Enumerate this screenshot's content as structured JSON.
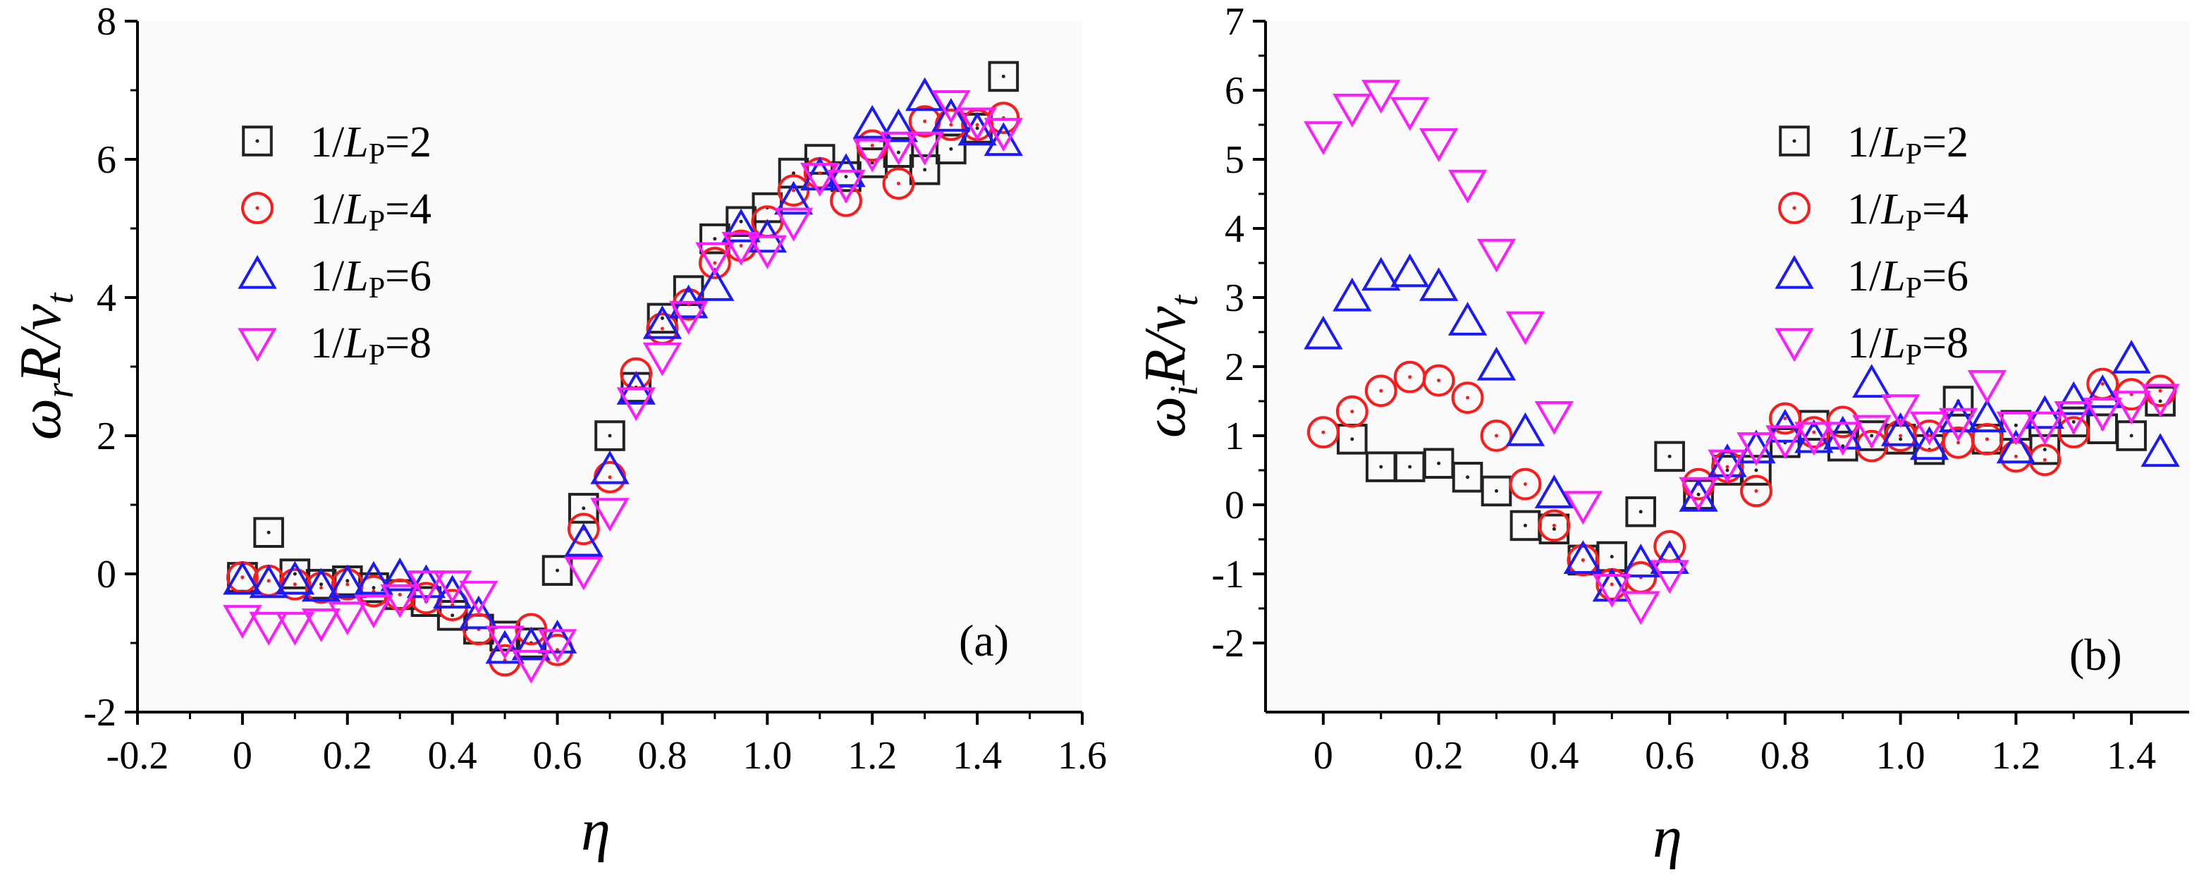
{
  "chart_data": [
    {
      "type": "scatter",
      "panel_label": "(a)",
      "ylabel": {
        "omega": "ω",
        "sub1": "r",
        "rest": "R/v",
        "sub2": "t"
      },
      "xlabel": "η",
      "xlim": [
        -0.2,
        1.6
      ],
      "ylim": [
        -2,
        8
      ],
      "xticks": [
        -0.2,
        0,
        0.2,
        0.4,
        0.6,
        0.8,
        1.0,
        1.2,
        1.4,
        1.6
      ],
      "xtick_labels": [
        "-0.2",
        "0",
        "0.2",
        "0.4",
        "0.6",
        "0.8",
        "1.0",
        "1.2",
        "1.4",
        "1.6"
      ],
      "yticks": [
        -2,
        0,
        2,
        4,
        6,
        8
      ],
      "ytick_labels": [
        "-2",
        "0",
        "2",
        "4",
        "6",
        "8"
      ],
      "legend_position": "top-left",
      "series": [
        {
          "name": "1/LP=2",
          "label_prefix": "1/",
          "label_L": "L",
          "label_sub": "P",
          "label_suffix": "=2",
          "marker": "square",
          "color": "#222222",
          "x": [
            0,
            0.05,
            0.1,
            0.15,
            0.2,
            0.25,
            0.3,
            0.35,
            0.4,
            0.45,
            0.5,
            0.55,
            0.6,
            0.65,
            0.7,
            0.75,
            0.8,
            0.85,
            0.9,
            0.95,
            1.0,
            1.05,
            1.1,
            1.15,
            1.2,
            1.25,
            1.3,
            1.35,
            1.4,
            1.45
          ],
          "y": [
            -0.05,
            0.6,
            0.0,
            -0.15,
            -0.1,
            -0.2,
            -0.3,
            -0.4,
            -0.6,
            -0.8,
            -0.9,
            -1.0,
            0.05,
            0.95,
            2.0,
            2.7,
            3.7,
            4.1,
            4.85,
            5.1,
            5.3,
            5.8,
            6.0,
            5.75,
            5.95,
            6.1,
            5.85,
            6.15,
            6.45,
            7.2
          ]
        },
        {
          "name": "1/LP=4",
          "label_prefix": "1/",
          "label_L": "L",
          "label_sub": "P",
          "label_suffix": "=4",
          "marker": "circle",
          "color": "#ff1a1a",
          "x": [
            0,
            0.05,
            0.1,
            0.15,
            0.2,
            0.25,
            0.3,
            0.35,
            0.4,
            0.45,
            0.5,
            0.55,
            0.6,
            0.65,
            0.7,
            0.75,
            0.8,
            0.85,
            0.9,
            0.95,
            1.0,
            1.05,
            1.1,
            1.15,
            1.2,
            1.25,
            1.3,
            1.35,
            1.4,
            1.45
          ],
          "y": [
            -0.05,
            -0.1,
            -0.15,
            -0.2,
            -0.15,
            -0.25,
            -0.3,
            -0.35,
            -0.45,
            -0.8,
            -1.25,
            -0.8,
            -1.1,
            0.65,
            1.4,
            2.9,
            3.55,
            3.9,
            4.5,
            4.75,
            5.1,
            5.55,
            5.8,
            5.4,
            6.2,
            5.65,
            6.55,
            6.5,
            6.5,
            6.6
          ]
        },
        {
          "name": "1/LP=6",
          "label_prefix": "1/",
          "label_L": "L",
          "label_sub": "P",
          "label_suffix": "=6",
          "marker": "triangle-up",
          "color": "#1a1aff",
          "x": [
            0,
            0.05,
            0.1,
            0.15,
            0.2,
            0.25,
            0.3,
            0.35,
            0.4,
            0.45,
            0.5,
            0.55,
            0.6,
            0.65,
            0.7,
            0.75,
            0.8,
            0.85,
            0.9,
            0.95,
            1.0,
            1.05,
            1.1,
            1.15,
            1.2,
            1.25,
            1.3,
            1.35,
            1.4,
            1.45
          ],
          "y": [
            -0.1,
            -0.15,
            -0.1,
            -0.2,
            -0.15,
            -0.1,
            -0.05,
            -0.15,
            -0.3,
            -0.6,
            -1.1,
            -1.05,
            -0.95,
            0.45,
            1.5,
            2.65,
            3.6,
            3.9,
            4.15,
            5.0,
            4.85,
            5.4,
            5.75,
            5.8,
            6.5,
            6.45,
            6.9,
            6.6,
            6.4,
            6.25
          ]
        },
        {
          "name": "1/LP=8",
          "label_prefix": "1/",
          "label_L": "L",
          "label_sub": "P",
          "label_suffix": "=8",
          "marker": "triangle-down",
          "color": "#ff1aff",
          "x": [
            0,
            0.05,
            0.1,
            0.15,
            0.2,
            0.25,
            0.3,
            0.35,
            0.4,
            0.45,
            0.5,
            0.55,
            0.6,
            0.65,
            0.7,
            0.75,
            0.8,
            0.85,
            0.9,
            0.95,
            1.0,
            1.05,
            1.1,
            1.15,
            1.2,
            1.25,
            1.3,
            1.35,
            1.4,
            1.45
          ],
          "y": [
            -0.65,
            -0.75,
            -0.75,
            -0.7,
            -0.6,
            -0.5,
            -0.35,
            -0.15,
            -0.15,
            -0.3,
            -0.95,
            -1.3,
            -1.0,
            0.05,
            0.9,
            2.5,
            3.15,
            3.75,
            4.6,
            4.75,
            4.7,
            5.1,
            5.75,
            5.65,
            6.1,
            6.2,
            6.2,
            6.8,
            6.55,
            6.4
          ]
        }
      ]
    },
    {
      "type": "scatter",
      "panel_label": "(b)",
      "ylabel": {
        "omega": "ω",
        "sub1": "i",
        "rest": "R/v",
        "sub2": "t"
      },
      "xlabel": "η",
      "xlim": [
        -0.1,
        1.5
      ],
      "ylim": [
        -3,
        7
      ],
      "xticks": [
        0,
        0.2,
        0.4,
        0.6,
        0.8,
        1.0,
        1.2,
        1.4
      ],
      "xtick_labels": [
        "0",
        "0.2",
        "0.4",
        "0.6",
        "0.8",
        "1.0",
        "1.2",
        "1.4"
      ],
      "yticks": [
        -2,
        -1,
        0,
        1,
        2,
        3,
        4,
        5,
        6,
        7
      ],
      "ytick_labels": [
        "-2",
        "-1",
        "0",
        "1",
        "2",
        "3",
        "4",
        "5",
        "6",
        "7"
      ],
      "legend_position": "top-right",
      "series": [
        {
          "name": "1/LP=2",
          "label_prefix": "1/",
          "label_L": "L",
          "label_sub": "P",
          "label_suffix": "=2",
          "marker": "square",
          "color": "#222222",
          "x": [
            0.05,
            0.1,
            0.15,
            0.2,
            0.25,
            0.3,
            0.35,
            0.4,
            0.45,
            0.5,
            0.55,
            0.6,
            0.65,
            0.7,
            0.75,
            0.8,
            0.85,
            0.9,
            0.95,
            1.0,
            1.05,
            1.1,
            1.15,
            1.2,
            1.25,
            1.3,
            1.35,
            1.4,
            1.45
          ],
          "y": [
            0.95,
            0.55,
            0.55,
            0.6,
            0.4,
            0.2,
            -0.3,
            -0.35,
            -0.8,
            -0.75,
            -0.1,
            0.7,
            0.15,
            0.5,
            0.5,
            0.9,
            1.15,
            0.85,
            1.0,
            0.95,
            0.8,
            1.5,
            0.95,
            1.15,
            0.8,
            1.2,
            1.1,
            1.0,
            1.5
          ]
        },
        {
          "name": "1/LP=4",
          "label_prefix": "1/",
          "label_L": "L",
          "label_sub": "P",
          "label_suffix": "=4",
          "marker": "circle",
          "color": "#ff1a1a",
          "x": [
            0,
            0.05,
            0.1,
            0.15,
            0.2,
            0.25,
            0.3,
            0.35,
            0.4,
            0.45,
            0.5,
            0.55,
            0.6,
            0.65,
            0.7,
            0.75,
            0.8,
            0.85,
            0.9,
            0.95,
            1.0,
            1.05,
            1.1,
            1.15,
            1.2,
            1.25,
            1.3,
            1.35,
            1.4,
            1.45
          ],
          "y": [
            1.05,
            1.35,
            1.65,
            1.85,
            1.8,
            1.55,
            1.0,
            0.3,
            -0.3,
            -0.8,
            -1.15,
            -1.05,
            -0.6,
            0.3,
            0.55,
            0.2,
            1.25,
            1.05,
            1.2,
            0.85,
            1.0,
            1.0,
            0.9,
            0.95,
            0.7,
            0.65,
            1.05,
            1.75,
            1.6,
            1.65
          ]
        },
        {
          "name": "1/LP=6",
          "label_prefix": "1/",
          "label_L": "L",
          "label_sub": "P",
          "label_suffix": "=6",
          "marker": "triangle-up",
          "color": "#1a1aff",
          "x": [
            0,
            0.05,
            0.1,
            0.15,
            0.2,
            0.25,
            0.3,
            0.35,
            0.4,
            0.45,
            0.5,
            0.55,
            0.6,
            0.65,
            0.7,
            0.75,
            0.8,
            0.85,
            0.9,
            0.95,
            1.0,
            1.05,
            1.1,
            1.15,
            1.2,
            1.25,
            1.3,
            1.35,
            1.4,
            1.45
          ],
          "y": [
            2.45,
            3.0,
            3.3,
            3.35,
            3.15,
            2.65,
            2.0,
            1.05,
            0.15,
            -0.8,
            -1.2,
            -0.85,
            -0.8,
            0.1,
            0.6,
            0.8,
            1.1,
            0.95,
            1.0,
            1.75,
            1.05,
            0.85,
            1.25,
            1.25,
            0.8,
            1.3,
            1.5,
            1.6,
            2.1,
            0.75
          ]
        },
        {
          "name": "1/LP=8",
          "label_prefix": "1/",
          "label_L": "L",
          "label_sub": "P",
          "label_suffix": "=8",
          "marker": "triangle-down",
          "color": "#ff1aff",
          "x": [
            0,
            0.05,
            0.1,
            0.15,
            0.2,
            0.25,
            0.3,
            0.35,
            0.4,
            0.45,
            0.5,
            0.55,
            0.6,
            0.65,
            0.7,
            0.75,
            0.8,
            0.85,
            0.9,
            0.95,
            1.0,
            1.05,
            1.1,
            1.15,
            1.2,
            1.25,
            1.3,
            1.35,
            1.4,
            1.45
          ],
          "y": [
            5.35,
            5.75,
            5.95,
            5.7,
            5.25,
            4.65,
            3.65,
            2.6,
            1.3,
            0.0,
            -1.2,
            -1.45,
            -1.0,
            0.2,
            0.6,
            0.85,
            0.95,
            1.0,
            1.0,
            1.1,
            1.4,
            1.15,
            1.2,
            1.75,
            1.15,
            1.15,
            1.3,
            1.35,
            1.45,
            1.55
          ]
        }
      ]
    }
  ]
}
